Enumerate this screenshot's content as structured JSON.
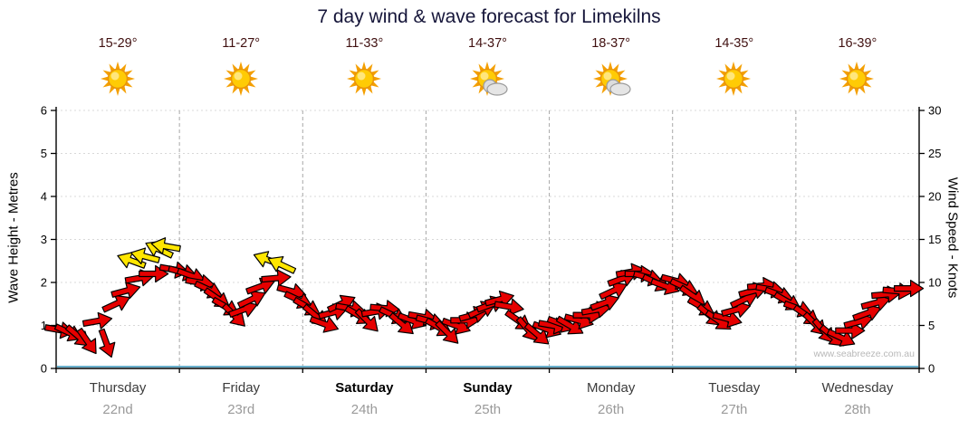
{
  "title": "7 day wind & wave forecast for Limekilns",
  "watermark": "www.seabreeze.com.au",
  "days": [
    {
      "name": "Thursday",
      "date": "22nd",
      "temp_range": "15-29°",
      "icon": "sunny",
      "weekend": false
    },
    {
      "name": "Friday",
      "date": "23rd",
      "temp_range": "11-27°",
      "icon": "sunny",
      "weekend": false
    },
    {
      "name": "Saturday",
      "date": "24th",
      "temp_range": "11-33°",
      "icon": "sunny",
      "weekend": true
    },
    {
      "name": "Sunday",
      "date": "25th",
      "temp_range": "14-37°",
      "icon": "partly-cloudy",
      "weekend": true
    },
    {
      "name": "Monday",
      "date": "26th",
      "temp_range": "18-37°",
      "icon": "partly-cloudy",
      "weekend": false
    },
    {
      "name": "Tuesday",
      "date": "27th",
      "temp_range": "14-35°",
      "icon": "sunny",
      "weekend": false
    },
    {
      "name": "Wednesday",
      "date": "28th",
      "temp_range": "16-39°",
      "icon": "sunny",
      "weekend": false
    }
  ],
  "colors": {
    "arrow_red": "#e60000",
    "arrow_yellow": "#ffe600",
    "axis": "#000000",
    "grid": "#d8d8d8",
    "day_divider": "#a8a8a8",
    "wave_baseline": "#5aa8c8",
    "title_text": "#16163a",
    "temp_text": "#401010",
    "day_text": "#3c3c3c",
    "date_text": "#9a9a9a",
    "watermark_text": "#b8b8b8"
  },
  "chart_data": {
    "type": "wind-arrow-series",
    "title": "7 day wind & wave forecast for Limekilns",
    "left_axis": {
      "label": "Wave Height - Metres",
      "min": 0,
      "max": 6,
      "ticks": [
        0,
        1,
        2,
        3,
        4,
        5,
        6
      ]
    },
    "right_axis": {
      "label": "Wind Speed - Knots",
      "min": 0,
      "max": 30,
      "ticks": [
        0,
        5,
        10,
        15,
        20,
        25,
        30
      ]
    },
    "x_axis": {
      "categories": [
        "Thursday 22nd",
        "Friday 23rd",
        "Saturday 24th",
        "Sunday 25th",
        "Monday 26th",
        "Tuesday 27th",
        "Wednesday 28th"
      ]
    },
    "grid": "dashed day dividers, faint horizontal metre lines",
    "legend_position": "none",
    "wave_height_note": "thin blue line flat along baseline near 0 m",
    "series_format": [
      "x_fraction_across_week",
      "wind_speed_knots",
      "arrow_rotation_deg",
      "arrow_color"
    ],
    "wind_arrows": [
      [
        0.003,
        4.5,
        10,
        "red"
      ],
      [
        0.014,
        4.2,
        25,
        "red"
      ],
      [
        0.025,
        3.8,
        40,
        "red"
      ],
      [
        0.036,
        3.2,
        55,
        "red"
      ],
      [
        0.047,
        5.5,
        -10,
        "red"
      ],
      [
        0.058,
        3.0,
        70,
        "red"
      ],
      [
        0.069,
        7.5,
        -25,
        "red"
      ],
      [
        0.08,
        9.0,
        -15,
        "red"
      ],
      [
        0.088,
        12.5,
        200,
        "yellow"
      ],
      [
        0.096,
        10.5,
        -10,
        "red"
      ],
      [
        0.104,
        13.0,
        195,
        "yellow"
      ],
      [
        0.112,
        11.0,
        0,
        "red"
      ],
      [
        0.12,
        13.8,
        205,
        "yellow"
      ],
      [
        0.128,
        14.2,
        190,
        "yellow"
      ],
      [
        0.136,
        11.5,
        10,
        "red"
      ],
      [
        0.146,
        11.2,
        15,
        "red"
      ],
      [
        0.156,
        10.8,
        20,
        "red"
      ],
      [
        0.166,
        10.0,
        10,
        "red"
      ],
      [
        0.176,
        9.2,
        25,
        "red"
      ],
      [
        0.186,
        8.2,
        35,
        "red"
      ],
      [
        0.196,
        7.2,
        30,
        "red"
      ],
      [
        0.206,
        6.2,
        45,
        "red"
      ],
      [
        0.216,
        6.8,
        -20,
        "red"
      ],
      [
        0.226,
        8.0,
        -25,
        "red"
      ],
      [
        0.236,
        9.5,
        -20,
        "red"
      ],
      [
        0.246,
        12.6,
        200,
        "yellow"
      ],
      [
        0.254,
        10.5,
        -5,
        "red"
      ],
      [
        0.262,
        12.0,
        205,
        "yellow"
      ],
      [
        0.272,
        9.0,
        15,
        "red"
      ],
      [
        0.28,
        8.0,
        25,
        "red"
      ],
      [
        0.29,
        7.2,
        30,
        "red"
      ],
      [
        0.3,
        6.2,
        40,
        "red"
      ],
      [
        0.31,
        5.2,
        20,
        "red"
      ],
      [
        0.32,
        6.5,
        -15,
        "red"
      ],
      [
        0.33,
        7.5,
        -25,
        "red"
      ],
      [
        0.34,
        7.0,
        10,
        "red"
      ],
      [
        0.35,
        6.2,
        30,
        "red"
      ],
      [
        0.36,
        5.6,
        45,
        "red"
      ],
      [
        0.37,
        6.6,
        -10,
        "red"
      ],
      [
        0.38,
        7.0,
        5,
        "red"
      ],
      [
        0.39,
        6.2,
        25,
        "red"
      ],
      [
        0.4,
        5.2,
        40,
        "red"
      ],
      [
        0.412,
        5.6,
        20,
        "red"
      ],
      [
        0.424,
        6.0,
        10,
        "red"
      ],
      [
        0.433,
        5.5,
        15,
        "red"
      ],
      [
        0.443,
        4.8,
        30,
        "red"
      ],
      [
        0.453,
        4.2,
        45,
        "red"
      ],
      [
        0.463,
        5.0,
        20,
        "red"
      ],
      [
        0.473,
        5.6,
        0,
        "red"
      ],
      [
        0.483,
        6.2,
        -15,
        "red"
      ],
      [
        0.493,
        6.8,
        -25,
        "red"
      ],
      [
        0.503,
        7.4,
        -20,
        "red"
      ],
      [
        0.513,
        8.0,
        -15,
        "red"
      ],
      [
        0.524,
        7.2,
        10,
        "red"
      ],
      [
        0.535,
        5.6,
        35,
        "red"
      ],
      [
        0.546,
        4.6,
        50,
        "red"
      ],
      [
        0.557,
        4.0,
        40,
        "red"
      ],
      [
        0.568,
        4.6,
        20,
        "red"
      ],
      [
        0.575,
        5.0,
        10,
        "red"
      ],
      [
        0.585,
        5.2,
        20,
        "red"
      ],
      [
        0.595,
        5.0,
        30,
        "red"
      ],
      [
        0.605,
        5.6,
        15,
        "red"
      ],
      [
        0.615,
        6.2,
        0,
        "red"
      ],
      [
        0.625,
        6.8,
        -10,
        "red"
      ],
      [
        0.635,
        7.6,
        -20,
        "red"
      ],
      [
        0.645,
        9.0,
        -25,
        "red"
      ],
      [
        0.655,
        10.4,
        -20,
        "red"
      ],
      [
        0.665,
        11.2,
        -10,
        "red"
      ],
      [
        0.675,
        11.0,
        0,
        "red"
      ],
      [
        0.685,
        10.6,
        15,
        "red"
      ],
      [
        0.695,
        10.0,
        25,
        "red"
      ],
      [
        0.705,
        9.6,
        20,
        "red"
      ],
      [
        0.717,
        10.2,
        15,
        "red"
      ],
      [
        0.727,
        9.5,
        25,
        "red"
      ],
      [
        0.737,
        8.5,
        35,
        "red"
      ],
      [
        0.747,
        7.2,
        30,
        "red"
      ],
      [
        0.757,
        6.2,
        40,
        "red"
      ],
      [
        0.767,
        5.6,
        35,
        "red"
      ],
      [
        0.777,
        5.8,
        15,
        "red"
      ],
      [
        0.787,
        6.8,
        -15,
        "red"
      ],
      [
        0.797,
        8.0,
        -25,
        "red"
      ],
      [
        0.807,
        9.0,
        -15,
        "red"
      ],
      [
        0.817,
        9.6,
        -5,
        "red"
      ],
      [
        0.827,
        9.2,
        10,
        "red"
      ],
      [
        0.837,
        8.6,
        20,
        "red"
      ],
      [
        0.847,
        7.8,
        30,
        "red"
      ],
      [
        0.859,
        7.0,
        20,
        "red"
      ],
      [
        0.869,
        6.2,
        35,
        "red"
      ],
      [
        0.879,
        5.2,
        45,
        "red"
      ],
      [
        0.889,
        4.4,
        50,
        "red"
      ],
      [
        0.899,
        3.8,
        40,
        "red"
      ],
      [
        0.909,
        3.6,
        25,
        "red"
      ],
      [
        0.919,
        4.4,
        0,
        "red"
      ],
      [
        0.929,
        5.4,
        -15,
        "red"
      ],
      [
        0.939,
        6.4,
        -20,
        "red"
      ],
      [
        0.949,
        7.6,
        -15,
        "red"
      ],
      [
        0.961,
        8.6,
        -5,
        "red"
      ],
      [
        0.974,
        9.0,
        5,
        "red"
      ],
      [
        0.987,
        9.3,
        0,
        "red"
      ]
    ]
  }
}
